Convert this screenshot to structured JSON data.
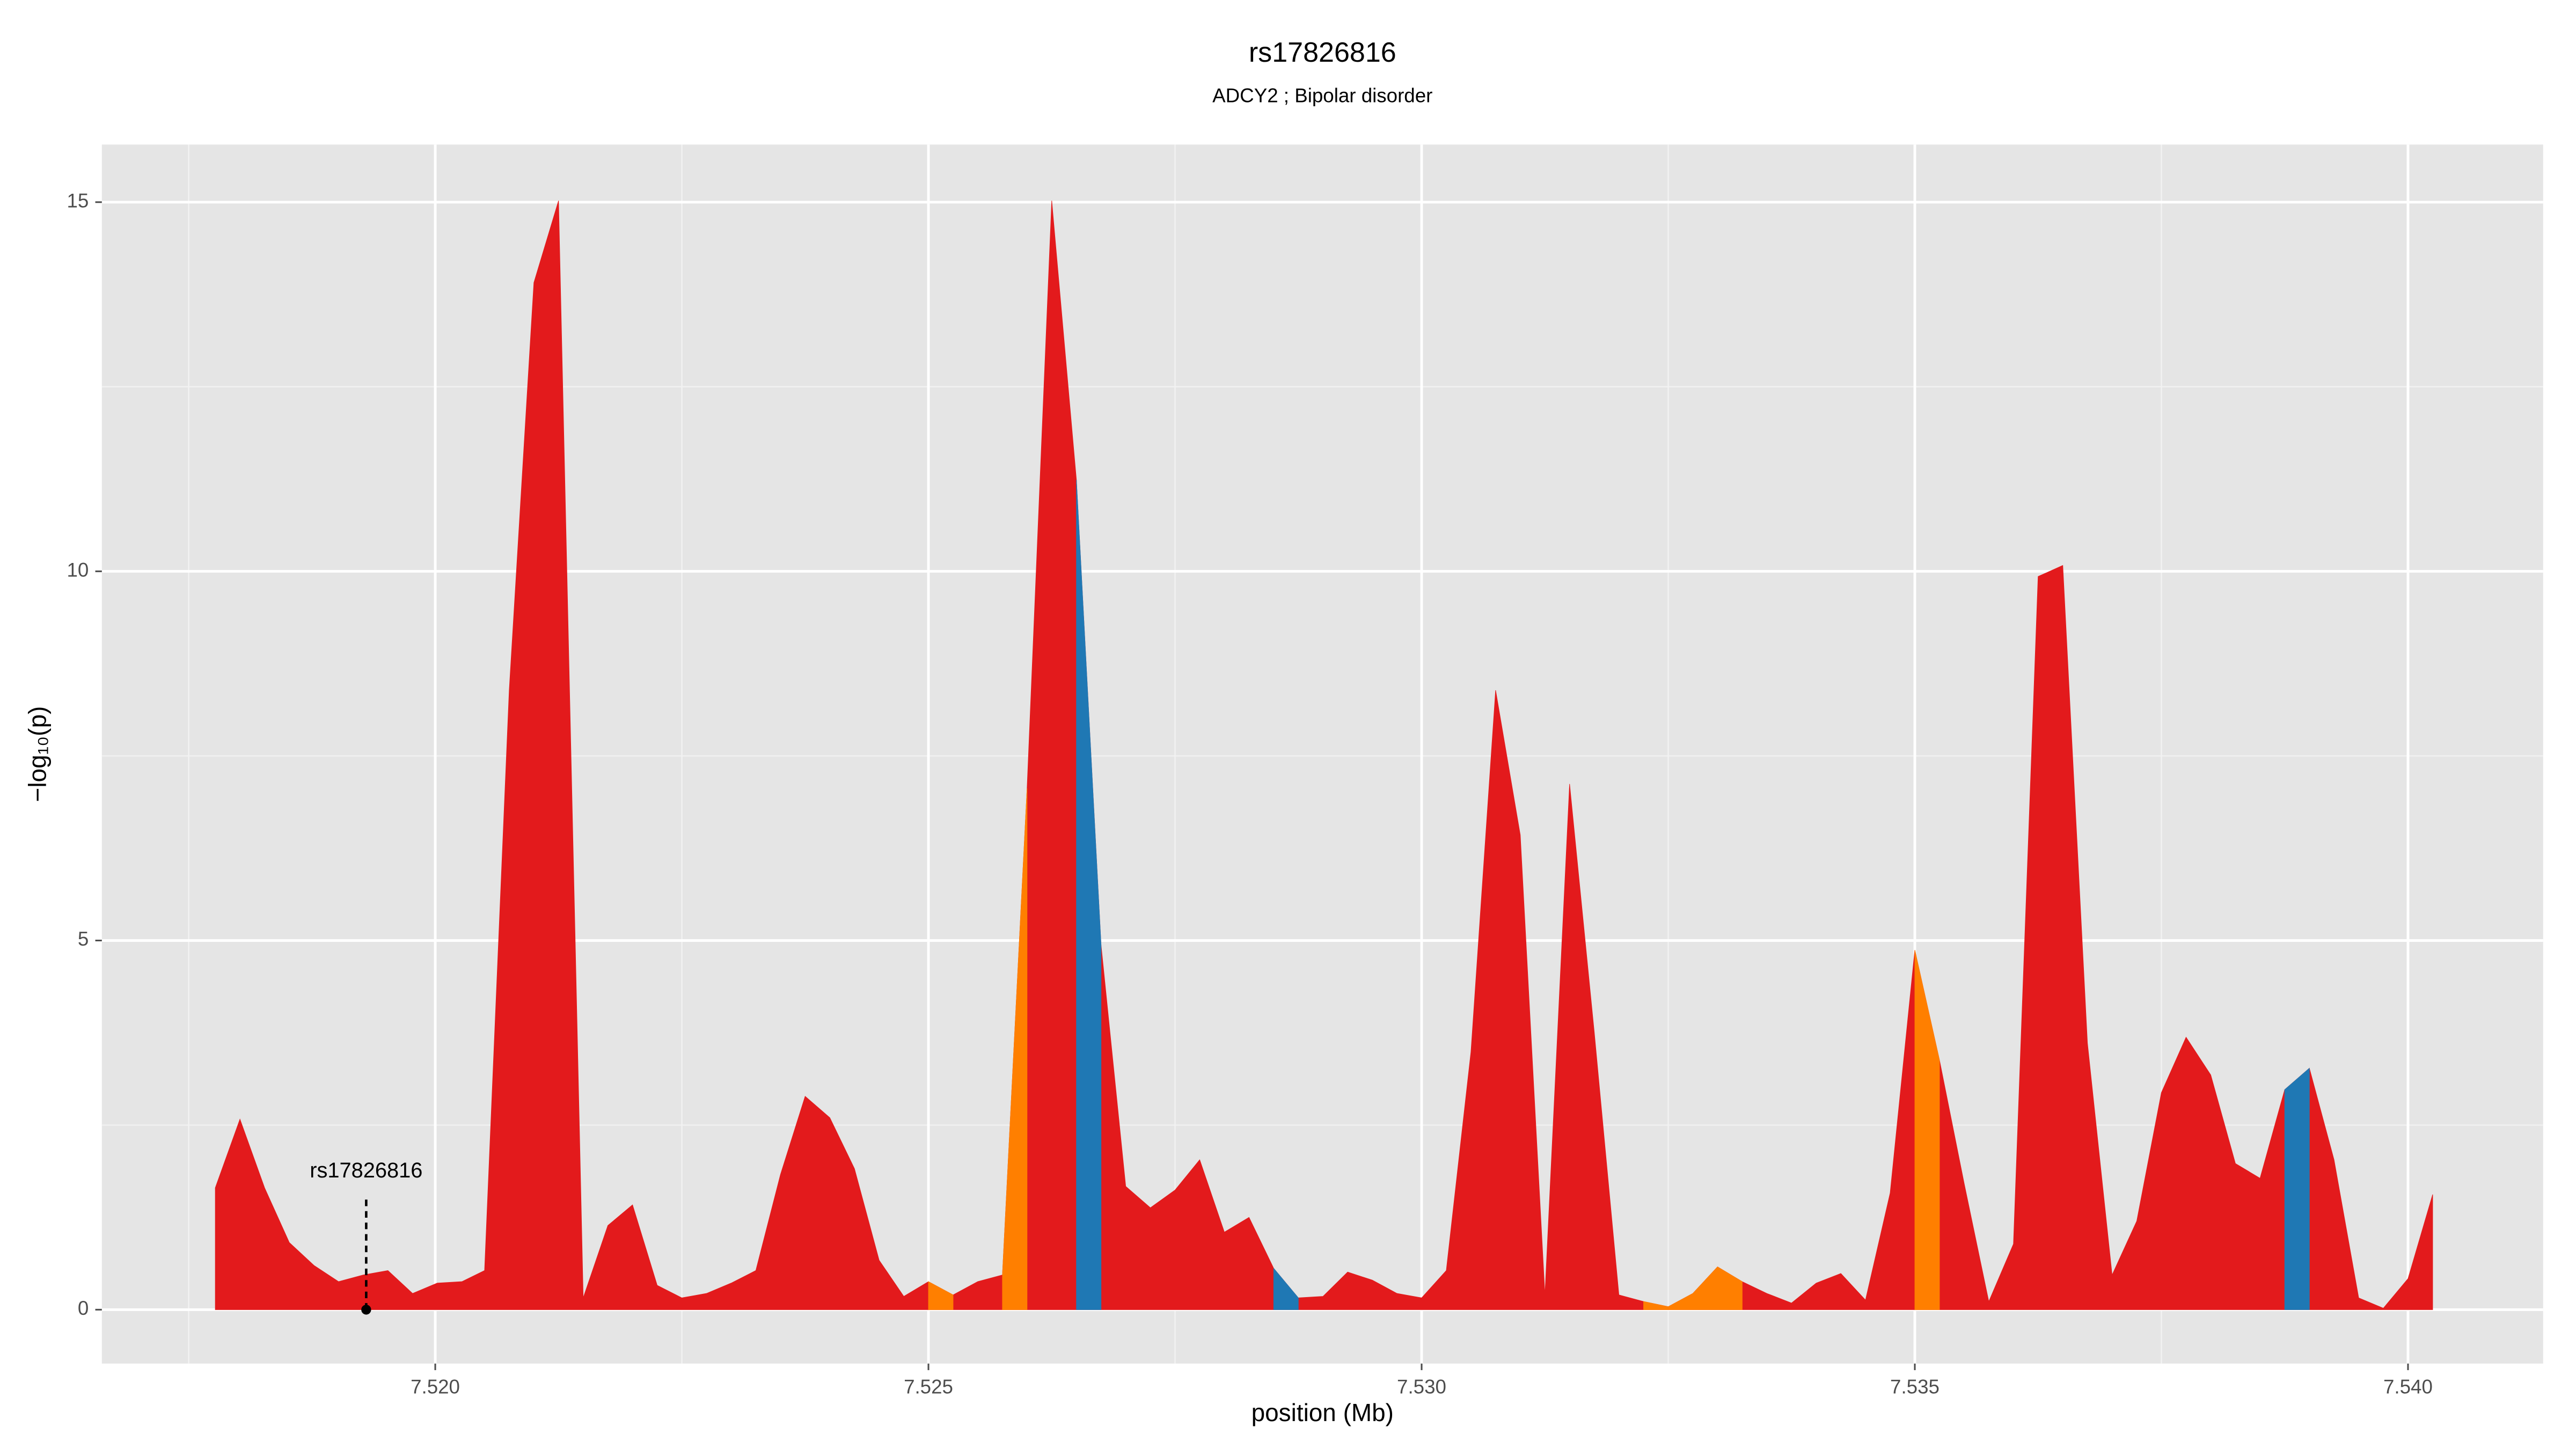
{
  "chart_data": {
    "type": "area",
    "title": "rs17826816",
    "subtitle": "ADCY2 ; Bipolar disorder",
    "xlabel": "position (Mb)",
    "ylabel": "−log₁₀(p)",
    "grid": true,
    "xlim": [
      7.51662,
      7.54137
    ],
    "ylim": [
      -0.73,
      15.78
    ],
    "xticks": [
      {
        "value": 7.52,
        "label": "7.520"
      },
      {
        "value": 7.525,
        "label": "7.525"
      },
      {
        "value": 7.53,
        "label": "7.530"
      },
      {
        "value": 7.535,
        "label": "7.535"
      },
      {
        "value": 7.54,
        "label": "7.540"
      }
    ],
    "yticks": [
      0,
      5,
      10,
      15
    ],
    "x": [
      7.51777,
      7.51802,
      7.51827,
      7.51852,
      7.51877,
      7.51902,
      7.51927,
      7.51952,
      7.51977,
      7.52002,
      7.52027,
      7.5205,
      7.52075,
      7.521,
      7.52125,
      7.5215,
      7.52175,
      7.522,
      7.52225,
      7.5225,
      7.52275,
      7.523,
      7.52325,
      7.5235,
      7.52375,
      7.524,
      7.52425,
      7.5245,
      7.52475,
      7.525,
      7.52525,
      7.5255,
      7.52575,
      7.526,
      7.52625,
      7.5265,
      7.52675,
      7.527,
      7.52725,
      7.5275,
      7.52775,
      7.528,
      7.52825,
      7.5285,
      7.52875,
      7.529,
      7.52925,
      7.5295,
      7.52975,
      7.53,
      7.53025,
      7.5305,
      7.53075,
      7.531,
      7.53125,
      7.5315,
      7.53175,
      7.532,
      7.53225,
      7.5325,
      7.53275,
      7.533,
      7.53325,
      7.5335,
      7.53375,
      7.534,
      7.53425,
      7.5345,
      7.53475,
      7.535,
      7.53525,
      7.5355,
      7.53575,
      7.536,
      7.53625,
      7.5365,
      7.53675,
      7.537,
      7.53725,
      7.5375,
      7.53775,
      7.538,
      7.53825,
      7.5385,
      7.53875,
      7.539,
      7.53925,
      7.5395,
      7.53975,
      7.54,
      7.54025
    ],
    "series": [
      {
        "color": "#e31a1c",
        "values": [
          1.65,
          2.58,
          1.65,
          0.91,
          0.6,
          0.38,
          0.47,
          0.53,
          0.22,
          0.36,
          0.38,
          0.53,
          8.39,
          13.91,
          15.02,
          0.16,
          1.14,
          1.42,
          0.33,
          0.16,
          0.22,
          0.36,
          0.53,
          1.83,
          2.89,
          2.6,
          1.91,
          0.67,
          0.18,
          0.38,
          0.2,
          0.38,
          0.47,
          7.06,
          15.02,
          11.24,
          4.94,
          1.67,
          1.38,
          1.62,
          2.03,
          1.05,
          1.25,
          0.56,
          0.16,
          0.18,
          0.51,
          0.4,
          0.22,
          0.16,
          0.53,
          3.49,
          8.39,
          6.43,
          0.2,
          7.12,
          3.76,
          0.2,
          0.11,
          0.04,
          0.22,
          0.58,
          0.38,
          0.22,
          0.09,
          0.36,
          0.49,
          0.13,
          1.58,
          4.87,
          3.38,
          1.71,
          0.11,
          0.89,
          9.93,
          10.08,
          3.61,
          0.47,
          1.2,
          2.94,
          3.69,
          3.18,
          1.98,
          1.78,
          2.98,
          3.27,
          2.03,
          0.16,
          0.02,
          0.42,
          1.56
        ]
      },
      {
        "color": "#ff7f00",
        "values": [
          null,
          null,
          null,
          null,
          null,
          null,
          null,
          null,
          null,
          null,
          null,
          null,
          null,
          null,
          null,
          null,
          null,
          null,
          null,
          null,
          null,
          null,
          null,
          null,
          null,
          null,
          null,
          null,
          null,
          0.38,
          0.2,
          null,
          0.47,
          7.06,
          null,
          null,
          null,
          null,
          null,
          null,
          null,
          null,
          null,
          null,
          null,
          null,
          null,
          null,
          null,
          null,
          null,
          null,
          null,
          null,
          null,
          null,
          null,
          null,
          0.11,
          0.04,
          0.22,
          0.58,
          0.38,
          null,
          null,
          null,
          null,
          null,
          null,
          4.87,
          3.38,
          null,
          null,
          null,
          null,
          null,
          null,
          null,
          null,
          null,
          null,
          null,
          null,
          null,
          null,
          null,
          null,
          null,
          null,
          null,
          null
        ]
      },
      {
        "color": "#1f78b4",
        "values": [
          null,
          null,
          null,
          null,
          null,
          null,
          null,
          null,
          null,
          null,
          null,
          null,
          null,
          null,
          null,
          null,
          null,
          null,
          null,
          null,
          null,
          null,
          null,
          null,
          null,
          null,
          null,
          null,
          null,
          null,
          null,
          null,
          null,
          null,
          null,
          11.24,
          4.94,
          null,
          null,
          null,
          null,
          null,
          null,
          0.56,
          0.16,
          null,
          null,
          null,
          null,
          null,
          null,
          null,
          null,
          null,
          null,
          null,
          null,
          null,
          null,
          null,
          null,
          null,
          null,
          null,
          null,
          null,
          null,
          null,
          null,
          null,
          null,
          null,
          null,
          null,
          null,
          null,
          null,
          null,
          null,
          null,
          null,
          null,
          null,
          null,
          2.98,
          3.27,
          null,
          null,
          null,
          null,
          null
        ]
      }
    ],
    "annotation": {
      "text": "rs17826816",
      "x": 7.5193,
      "y": 0
    }
  }
}
